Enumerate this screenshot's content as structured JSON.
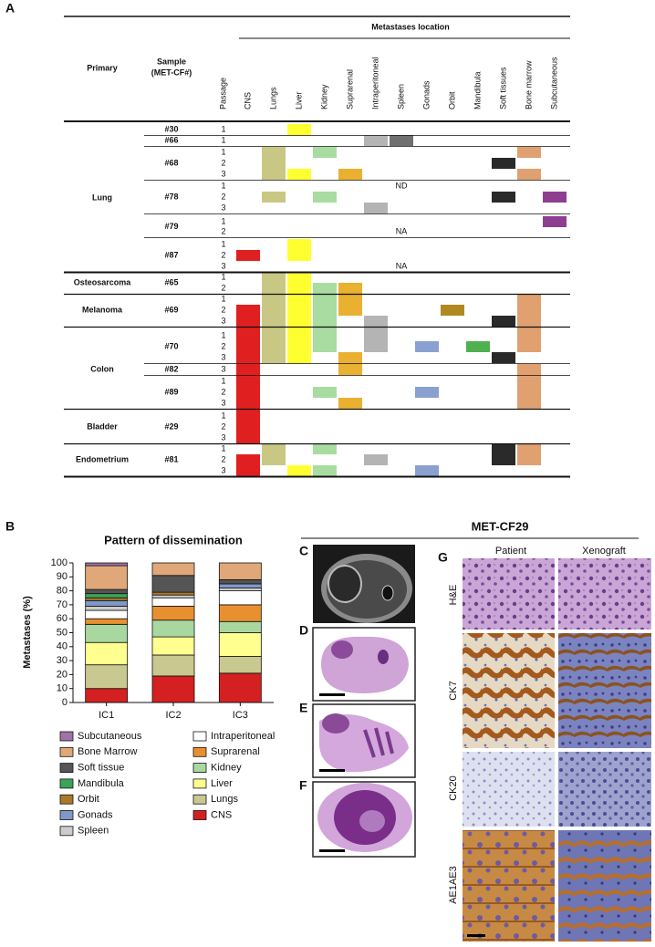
{
  "panel_labels": [
    "A",
    "B",
    "C",
    "D",
    "E",
    "F",
    "G"
  ],
  "table": {
    "header": {
      "group": "Metastases location",
      "primary": "Primary",
      "sample": [
        "Sample",
        "(MET-CF#)"
      ],
      "passage": "Passage",
      "columns": [
        "CNS",
        "Lungs",
        "Liver",
        "Kidney",
        "Suprarenal",
        "Intraperitoneal",
        "Spleen",
        "Gonads",
        "Orbit",
        "Mandibula",
        "Soft tissues",
        "Bone marrow",
        "Subcutaneous"
      ]
    },
    "groups": [
      {
        "primary": "Lung",
        "samples": [
          {
            "sample": "#30",
            "passages": [
              1
            ]
          },
          {
            "sample": "#66",
            "passages": [
              1
            ]
          },
          {
            "sample": "#68",
            "passages": [
              1,
              2,
              3
            ]
          },
          {
            "sample": "#78",
            "passages": [
              1,
              2,
              3
            ],
            "note": "ND"
          },
          {
            "sample": "#79",
            "passages": [
              1,
              2
            ],
            "note": "NA"
          },
          {
            "sample": "#87",
            "passages": [
              1,
              2,
              3
            ],
            "note": "NA"
          }
        ]
      },
      {
        "primary": "Osteosarcoma",
        "samples": [
          {
            "sample": "#65",
            "passages": [
              1,
              2
            ]
          }
        ]
      },
      {
        "primary": "Melanoma",
        "samples": [
          {
            "sample": "#69",
            "passages": [
              1,
              2,
              3
            ]
          }
        ]
      },
      {
        "primary": "Colon",
        "samples": [
          {
            "sample": "#70",
            "passages": [
              1,
              2,
              3
            ]
          },
          {
            "sample": "#82",
            "passages": [
              3
            ]
          },
          {
            "sample": "#89",
            "passages": [
              1,
              2,
              3
            ]
          }
        ]
      },
      {
        "primary": "Bladder",
        "samples": [
          {
            "sample": "#29",
            "passages": [
              1,
              2,
              3
            ]
          }
        ]
      },
      {
        "primary": "Endometrium",
        "samples": [
          {
            "sample": "#81",
            "passages": [
              1,
              2,
              3
            ]
          }
        ]
      }
    ]
  },
  "chart_data": {
    "type": "stacked_bar",
    "title": "Pattern of dissemination",
    "y_label": "Metastases (%)",
    "categories": [
      "IC1",
      "IC2",
      "IC3"
    ],
    "ylim": [
      0,
      100
    ],
    "yticks": [
      0,
      10,
      20,
      30,
      40,
      50,
      60,
      70,
      80,
      90,
      100
    ],
    "series": [
      {
        "name": "CNS",
        "color": "#d42020",
        "values": [
          10,
          19,
          21
        ]
      },
      {
        "name": "Lungs",
        "color": "#c8c890",
        "values": [
          17,
          15,
          12
        ]
      },
      {
        "name": "Liver",
        "color": "#ffff90",
        "values": [
          16,
          13,
          17
        ]
      },
      {
        "name": "Kidney",
        "color": "#a8d8a0",
        "values": [
          13,
          12,
          8
        ]
      },
      {
        "name": "Suprarenal",
        "color": "#e89030",
        "values": [
          4,
          10,
          12
        ]
      },
      {
        "name": "Intraperitoneal",
        "color": "#ffffff",
        "values": [
          6,
          6,
          10
        ]
      },
      {
        "name": "Spleen",
        "color": "#cccccc",
        "values": [
          3,
          2,
          2
        ]
      },
      {
        "name": "Gonads",
        "color": "#8098c8",
        "values": [
          4,
          0,
          3
        ]
      },
      {
        "name": "Orbit",
        "color": "#a87a2a",
        "values": [
          2,
          2,
          0
        ]
      },
      {
        "name": "Mandibula",
        "color": "#3aa45a",
        "values": [
          3,
          0,
          0
        ]
      },
      {
        "name": "Soft tissue",
        "color": "#555555",
        "values": [
          3,
          12,
          3
        ]
      },
      {
        "name": "Bone Marrow",
        "color": "#e0a878",
        "values": [
          17,
          9,
          12
        ]
      },
      {
        "name": "Subcutaneous",
        "color": "#a070a8",
        "values": [
          2,
          0,
          0
        ]
      }
    ]
  },
  "figure": {
    "title": "MET-CF29",
    "g_columns": [
      "Patient",
      "Xenograft"
    ],
    "g_rows": [
      "H&E",
      "CK7",
      "CK20",
      "AE1AE3"
    ]
  }
}
